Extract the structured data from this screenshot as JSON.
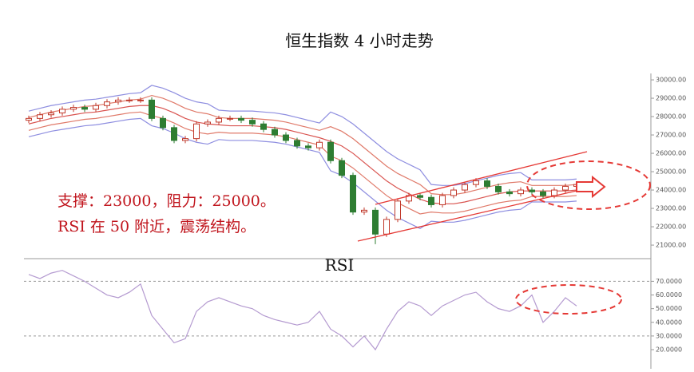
{
  "chart_data": [
    {
      "type": "candlestick",
      "title": "恒生指数 4 小时走势",
      "annotations": [
        "支撑：23000，阻力：25000。",
        "RSI 在 50 附近，震荡结构。"
      ],
      "up_color": "#c0392b",
      "down_color": "#2e7d32",
      "open": [
        27800,
        27900,
        28100,
        28200,
        28400,
        28500,
        28400,
        28600,
        28800,
        28900,
        28900,
        28900,
        27900,
        27400,
        26700,
        26800,
        27600,
        27700,
        27900,
        27900,
        27800,
        27600,
        27300,
        27000,
        26700,
        26400,
        26300,
        26600,
        25600,
        24800,
        22800,
        22900,
        21600,
        22400,
        23400,
        23700,
        23600,
        23200,
        23700,
        24000,
        24300,
        24500,
        24200,
        23900,
        23800,
        24000,
        23900,
        23700,
        24000,
        24200
      ],
      "high": [
        28050,
        28250,
        28350,
        28550,
        28650,
        28650,
        28750,
        28950,
        29050,
        29050,
        29050,
        29050,
        28050,
        27550,
        26950,
        27750,
        27850,
        28050,
        28050,
        28050,
        27950,
        27750,
        27450,
        27150,
        26850,
        26550,
        26750,
        26750,
        25750,
        24950,
        23050,
        23050,
        22550,
        23550,
        23850,
        23850,
        23750,
        23850,
        24150,
        24450,
        24650,
        24650,
        24350,
        24050,
        24150,
        24150,
        24050,
        24150,
        24350,
        24450
      ],
      "low": [
        27650,
        27750,
        27950,
        28050,
        28250,
        28250,
        28250,
        28450,
        28650,
        28750,
        28750,
        27750,
        27250,
        26550,
        26550,
        26650,
        27450,
        27550,
        27750,
        27650,
        27450,
        27150,
        26850,
        26550,
        26250,
        26150,
        26150,
        25450,
        24650,
        22650,
        22650,
        21050,
        21450,
        22250,
        23250,
        23450,
        23050,
        23050,
        23550,
        23850,
        24150,
        24050,
        23750,
        23650,
        23650,
        23750,
        23550,
        23550,
        23850,
        24050
      ],
      "close": [
        27900,
        28100,
        28200,
        28400,
        28500,
        28400,
        28600,
        28800,
        28900,
        28900,
        28900,
        27900,
        27400,
        26700,
        26800,
        27600,
        27700,
        27900,
        27900,
        27800,
        27600,
        27300,
        27000,
        26700,
        26400,
        26300,
        26600,
        25600,
        24800,
        22800,
        22900,
        21600,
        22400,
        23400,
        23700,
        23600,
        23200,
        23700,
        24000,
        24300,
        24500,
        24200,
        23900,
        23800,
        24000,
        23900,
        23700,
        24000,
        24200,
        24300
      ],
      "lines": [
        {
          "color": "#8e8ee0",
          "values": [
            28300,
            28450,
            28600,
            28700,
            28800,
            28900,
            28950,
            29050,
            29150,
            29250,
            29300,
            29700,
            29550,
            29300,
            29000,
            28800,
            28700,
            28350,
            28300,
            28300,
            28300,
            28250,
            28200,
            28100,
            27950,
            27800,
            27650,
            28250,
            28000,
            27600,
            27100,
            26600,
            26100,
            25700,
            25400,
            25100,
            24300,
            24250,
            24250,
            24350,
            24500,
            24650,
            24800,
            24900,
            24950,
            24550,
            24550,
            24550,
            24550,
            24600
          ]
        },
        {
          "color": "#e07a6a",
          "values": [
            27950,
            28100,
            28250,
            28350,
            28450,
            28550,
            28600,
            28700,
            28800,
            28900,
            28950,
            29150,
            29000,
            28750,
            28450,
            28250,
            28150,
            27950,
            27900,
            27900,
            27900,
            27850,
            27800,
            27700,
            27550,
            27400,
            27250,
            27450,
            27200,
            26800,
            26300,
            25800,
            25300,
            24900,
            24600,
            24300,
            23800,
            23750,
            23750,
            23850,
            24000,
            24150,
            24300,
            24400,
            24450,
            24250,
            24250,
            24250,
            24250,
            24300
          ]
        },
        {
          "color": "#d9534f",
          "values": [
            27600,
            27750,
            27900,
            28000,
            28100,
            28200,
            28250,
            28350,
            28450,
            28550,
            28600,
            28600,
            28450,
            28200,
            27900,
            27700,
            27600,
            27550,
            27500,
            27500,
            27500,
            27450,
            27400,
            27300,
            27150,
            27000,
            26850,
            26650,
            26400,
            26000,
            25500,
            25000,
            24500,
            24100,
            23800,
            23500,
            23300,
            23250,
            23250,
            23350,
            23500,
            23650,
            23800,
            23900,
            23950,
            23950,
            23950,
            23950,
            23950,
            24000
          ]
        },
        {
          "color": "#e07a6a",
          "values": [
            27250,
            27400,
            27550,
            27650,
            27750,
            27850,
            27900,
            28000,
            28100,
            28200,
            28250,
            28050,
            27900,
            27650,
            27350,
            27150,
            27050,
            27150,
            27100,
            27100,
            27100,
            27050,
            27000,
            26900,
            26750,
            26600,
            26450,
            25850,
            25600,
            25200,
            24700,
            24200,
            23700,
            23300,
            23000,
            22700,
            22800,
            22750,
            22750,
            22850,
            23000,
            23150,
            23300,
            23400,
            23450,
            23650,
            23650,
            23650,
            23650,
            23700
          ]
        },
        {
          "color": "#8e8ee0",
          "values": [
            26900,
            27050,
            27200,
            27300,
            27400,
            27500,
            27550,
            27650,
            27750,
            27850,
            27900,
            27500,
            27350,
            27100,
            26800,
            26600,
            26500,
            26750,
            26700,
            26700,
            26700,
            26650,
            26600,
            26500,
            26350,
            26200,
            26050,
            25050,
            24800,
            24400,
            23900,
            23400,
            22900,
            22500,
            22200,
            21900,
            22300,
            22250,
            22250,
            22350,
            22500,
            22650,
            22800,
            22900,
            22950,
            23350,
            23350,
            23350,
            23350,
            23400
          ]
        }
      ],
      "ylim": [
        20350,
        30350
      ],
      "yticks": [
        {
          "value": 21000,
          "label": "21000.00"
        },
        {
          "value": 22000,
          "label": "22000.00"
        },
        {
          "value": 23000,
          "label": "23000.00"
        },
        {
          "value": 24000,
          "label": "24000.00"
        },
        {
          "value": 25000,
          "label": "25000.00"
        },
        {
          "value": 26000,
          "label": "26000.00"
        },
        {
          "value": 27000,
          "label": "27000.00"
        },
        {
          "value": 28000,
          "label": "28000.00"
        },
        {
          "value": 29000,
          "label": "29000.00"
        },
        {
          "value": 30000,
          "label": "30000.00"
        }
      ]
    },
    {
      "type": "line",
      "title": "RSI",
      "color": "#b49ad0",
      "values": [
        75,
        72,
        76,
        78,
        74,
        70,
        65,
        60,
        58,
        62,
        68,
        45,
        35,
        25,
        28,
        48,
        55,
        58,
        55,
        52,
        50,
        45,
        42,
        40,
        38,
        40,
        48,
        35,
        30,
        22,
        30,
        20,
        35,
        48,
        55,
        52,
        45,
        52,
        56,
        60,
        62,
        55,
        50,
        48,
        52,
        60,
        40,
        48,
        58,
        52
      ],
      "reference_lines": [
        70,
        30
      ],
      "ylim": [
        13,
        86
      ],
      "yticks": [
        {
          "value": 20,
          "label": "20.0000"
        },
        {
          "value": 30,
          "label": "30.0000"
        },
        {
          "value": 40,
          "label": "40.0000"
        },
        {
          "value": 50,
          "label": "50.0000"
        },
        {
          "value": 60,
          "label": "60.0000"
        },
        {
          "value": 70,
          "label": "70.0000"
        }
      ]
    }
  ]
}
